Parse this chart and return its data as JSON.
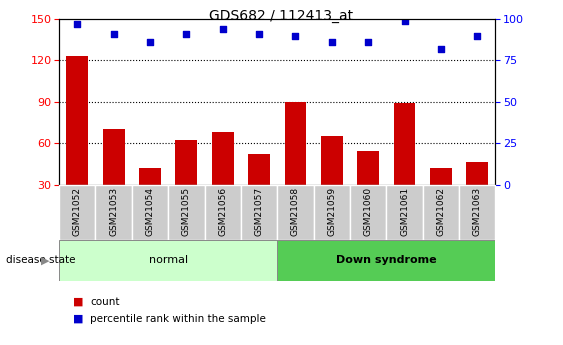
{
  "title": "GDS682 / 112413_at",
  "samples": [
    "GSM21052",
    "GSM21053",
    "GSM21054",
    "GSM21055",
    "GSM21056",
    "GSM21057",
    "GSM21058",
    "GSM21059",
    "GSM21060",
    "GSM21061",
    "GSM21062",
    "GSM21063"
  ],
  "counts": [
    123,
    70,
    42,
    62,
    68,
    52,
    90,
    65,
    54,
    89,
    42,
    46
  ],
  "percentiles": [
    97,
    91,
    86,
    91,
    94,
    91,
    90,
    86,
    86,
    99,
    82,
    90
  ],
  "ylim_left": [
    30,
    150
  ],
  "ylim_right": [
    0,
    100
  ],
  "yticks_left": [
    30,
    60,
    90,
    120,
    150
  ],
  "yticks_right": [
    0,
    25,
    50,
    75,
    100
  ],
  "grid_values": [
    60,
    90,
    120
  ],
  "bar_color": "#cc0000",
  "dot_color": "#0000cc",
  "normal_label": "normal",
  "down_label": "Down syndrome",
  "disease_state_label": "disease state",
  "legend_count": "count",
  "legend_percentile": "percentile rank within the sample",
  "normal_bg": "#ccffcc",
  "down_bg": "#55cc55",
  "tick_label_bg": "#cccccc",
  "title_fontsize": 10,
  "tick_fontsize": 8
}
